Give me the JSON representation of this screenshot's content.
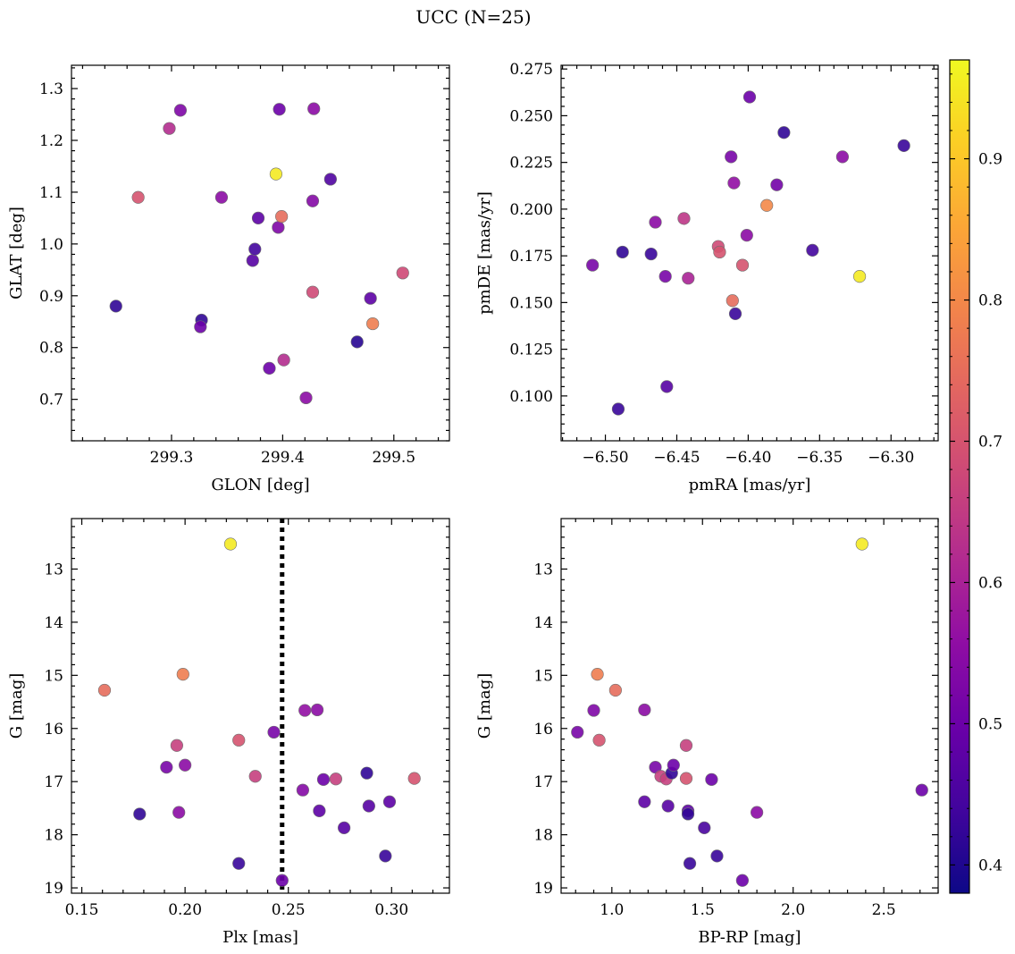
{
  "figure": {
    "title": "UCC (N=25)"
  },
  "colorbar": {
    "min": 0.38,
    "max": 0.97,
    "ticks": [
      0.4,
      0.5,
      0.6,
      0.7,
      0.8,
      0.9
    ],
    "tick_labels": [
      "0.4",
      "0.5",
      "0.6",
      "0.7",
      "0.8",
      "0.9"
    ],
    "colormap": "plasma"
  },
  "chart_data": [
    {
      "type": "scatter",
      "xlabel": "GLON [deg]",
      "ylabel": "GLAT [deg]",
      "xlim": [
        299.21,
        299.55
      ],
      "ylim": [
        0.62,
        1.345
      ],
      "y_inverted": false,
      "xticks": [
        299.3,
        299.4,
        299.5
      ],
      "xtick_labels": [
        "299.3",
        "299.4",
        "299.5"
      ],
      "yticks": [
        0.7,
        0.8,
        0.9,
        1.0,
        1.1,
        1.2,
        1.3
      ],
      "ytick_labels": [
        "0.7",
        "0.8",
        "0.9",
        "1.0",
        "1.1",
        "1.2",
        "1.3"
      ],
      "points": [
        {
          "x": 299.25,
          "y": 0.88,
          "c": 0.42
        },
        {
          "x": 299.27,
          "y": 1.09,
          "c": 0.7
        },
        {
          "x": 299.298,
          "y": 1.223,
          "c": 0.62
        },
        {
          "x": 299.308,
          "y": 1.258,
          "c": 0.53
        },
        {
          "x": 299.327,
          "y": 0.853,
          "c": 0.42
        },
        {
          "x": 299.326,
          "y": 0.84,
          "c": 0.5
        },
        {
          "x": 299.345,
          "y": 1.09,
          "c": 0.55
        },
        {
          "x": 299.373,
          "y": 0.968,
          "c": 0.47
        },
        {
          "x": 299.375,
          "y": 0.99,
          "c": 0.44
        },
        {
          "x": 299.378,
          "y": 1.05,
          "c": 0.48
        },
        {
          "x": 299.388,
          "y": 0.76,
          "c": 0.5
        },
        {
          "x": 299.394,
          "y": 1.135,
          "c": 0.95
        },
        {
          "x": 299.396,
          "y": 1.032,
          "c": 0.53
        },
        {
          "x": 299.397,
          "y": 1.26,
          "c": 0.5
        },
        {
          "x": 299.399,
          "y": 1.053,
          "c": 0.75
        },
        {
          "x": 299.401,
          "y": 0.776,
          "c": 0.62
        },
        {
          "x": 299.421,
          "y": 0.703,
          "c": 0.55
        },
        {
          "x": 299.427,
          "y": 0.907,
          "c": 0.68
        },
        {
          "x": 299.427,
          "y": 1.083,
          "c": 0.54
        },
        {
          "x": 299.428,
          "y": 1.261,
          "c": 0.55
        },
        {
          "x": 299.443,
          "y": 1.125,
          "c": 0.46
        },
        {
          "x": 299.467,
          "y": 0.811,
          "c": 0.41
        },
        {
          "x": 299.479,
          "y": 0.895,
          "c": 0.48
        },
        {
          "x": 299.481,
          "y": 0.846,
          "c": 0.78
        },
        {
          "x": 299.508,
          "y": 0.944,
          "c": 0.68
        }
      ]
    },
    {
      "type": "scatter",
      "xlabel": "pmRA [mas/yr]",
      "ylabel": "pmDE [mas/yr]",
      "xlim": [
        -6.531,
        -6.267
      ],
      "ylim": [
        0.076,
        0.277
      ],
      "y_inverted": false,
      "xticks": [
        -6.5,
        -6.45,
        -6.4,
        -6.35,
        -6.3
      ],
      "xtick_labels": [
        "−6.50",
        "−6.45",
        "−6.40",
        "−6.35",
        "−6.30"
      ],
      "yticks": [
        0.1,
        0.125,
        0.15,
        0.175,
        0.2,
        0.225,
        0.25,
        0.275
      ],
      "ytick_labels": [
        "0.100",
        "0.125",
        "0.150",
        "0.175",
        "0.200",
        "0.225",
        "0.250",
        "0.275"
      ],
      "points": [
        {
          "x": -6.509,
          "y": 0.17,
          "c": 0.52
        },
        {
          "x": -6.491,
          "y": 0.093,
          "c": 0.43
        },
        {
          "x": -6.488,
          "y": 0.177,
          "c": 0.42
        },
        {
          "x": -6.468,
          "y": 0.176,
          "c": 0.43
        },
        {
          "x": -6.465,
          "y": 0.193,
          "c": 0.55
        },
        {
          "x": -6.458,
          "y": 0.164,
          "c": 0.52
        },
        {
          "x": -6.457,
          "y": 0.105,
          "c": 0.47
        },
        {
          "x": -6.445,
          "y": 0.195,
          "c": 0.64
        },
        {
          "x": -6.442,
          "y": 0.163,
          "c": 0.6
        },
        {
          "x": -6.421,
          "y": 0.18,
          "c": 0.68
        },
        {
          "x": -6.42,
          "y": 0.177,
          "c": 0.7
        },
        {
          "x": -6.412,
          "y": 0.228,
          "c": 0.52
        },
        {
          "x": -6.411,
          "y": 0.151,
          "c": 0.75
        },
        {
          "x": -6.41,
          "y": 0.214,
          "c": 0.56
        },
        {
          "x": -6.409,
          "y": 0.144,
          "c": 0.43
        },
        {
          "x": -6.404,
          "y": 0.17,
          "c": 0.7
        },
        {
          "x": -6.401,
          "y": 0.186,
          "c": 0.55
        },
        {
          "x": -6.399,
          "y": 0.26,
          "c": 0.5
        },
        {
          "x": -6.387,
          "y": 0.202,
          "c": 0.8
        },
        {
          "x": -6.38,
          "y": 0.213,
          "c": 0.51
        },
        {
          "x": -6.375,
          "y": 0.241,
          "c": 0.42
        },
        {
          "x": -6.355,
          "y": 0.178,
          "c": 0.44
        },
        {
          "x": -6.334,
          "y": 0.228,
          "c": 0.55
        },
        {
          "x": -6.322,
          "y": 0.164,
          "c": 0.95
        },
        {
          "x": -6.291,
          "y": 0.234,
          "c": 0.43
        }
      ]
    },
    {
      "type": "scatter",
      "xlabel": "Plx [mas]",
      "ylabel": "G [mag]",
      "xlim": [
        0.145,
        0.328
      ],
      "ylim": [
        12.05,
        19.1
      ],
      "y_inverted": true,
      "xticks": [
        0.15,
        0.2,
        0.25,
        0.3
      ],
      "xtick_labels": [
        "0.15",
        "0.20",
        "0.25",
        "0.30"
      ],
      "yticks": [
        13,
        14,
        15,
        16,
        17,
        18,
        19
      ],
      "ytick_labels": [
        "13",
        "14",
        "15",
        "16",
        "17",
        "18",
        "19"
      ],
      "vline": {
        "x": 0.247,
        "style": "dotted",
        "color": "#000000"
      },
      "points": [
        {
          "x": 0.161,
          "y": 15.28,
          "c": 0.75
        },
        {
          "x": 0.178,
          "y": 17.61,
          "c": 0.42
        },
        {
          "x": 0.191,
          "y": 16.73,
          "c": 0.52
        },
        {
          "x": 0.196,
          "y": 16.32,
          "c": 0.66
        },
        {
          "x": 0.197,
          "y": 17.58,
          "c": 0.55
        },
        {
          "x": 0.199,
          "y": 14.98,
          "c": 0.78
        },
        {
          "x": 0.2,
          "y": 16.69,
          "c": 0.55
        },
        {
          "x": 0.222,
          "y": 12.53,
          "c": 0.95
        },
        {
          "x": 0.226,
          "y": 18.54,
          "c": 0.43
        },
        {
          "x": 0.226,
          "y": 16.22,
          "c": 0.7
        },
        {
          "x": 0.234,
          "y": 16.9,
          "c": 0.66
        },
        {
          "x": 0.243,
          "y": 16.07,
          "c": 0.52
        },
        {
          "x": 0.247,
          "y": 18.86,
          "c": 0.5
        },
        {
          "x": 0.257,
          "y": 17.16,
          "c": 0.54
        },
        {
          "x": 0.258,
          "y": 15.66,
          "c": 0.56
        },
        {
          "x": 0.264,
          "y": 15.65,
          "c": 0.55
        },
        {
          "x": 0.265,
          "y": 17.55,
          "c": 0.48
        },
        {
          "x": 0.267,
          "y": 16.96,
          "c": 0.5
        },
        {
          "x": 0.273,
          "y": 16.95,
          "c": 0.66
        },
        {
          "x": 0.277,
          "y": 17.87,
          "c": 0.47
        },
        {
          "x": 0.288,
          "y": 16.84,
          "c": 0.42
        },
        {
          "x": 0.289,
          "y": 17.46,
          "c": 0.47
        },
        {
          "x": 0.297,
          "y": 18.4,
          "c": 0.43
        },
        {
          "x": 0.299,
          "y": 17.38,
          "c": 0.48
        },
        {
          "x": 0.311,
          "y": 16.94,
          "c": 0.7
        }
      ]
    },
    {
      "type": "scatter",
      "xlabel": "BP-RP [mag]",
      "ylabel": "G [mag]",
      "xlim": [
        0.72,
        2.8
      ],
      "ylim": [
        12.05,
        19.1
      ],
      "y_inverted": true,
      "xticks": [
        1.0,
        1.5,
        2.0,
        2.5
      ],
      "xtick_labels": [
        "1.0",
        "1.5",
        "2.0",
        "2.5"
      ],
      "yticks": [
        13,
        14,
        15,
        16,
        17,
        18,
        19
      ],
      "ytick_labels": [
        "13",
        "14",
        "15",
        "16",
        "17",
        "18",
        "19"
      ],
      "points": [
        {
          "x": 0.81,
          "y": 16.07,
          "c": 0.52
        },
        {
          "x": 0.9,
          "y": 15.66,
          "c": 0.53
        },
        {
          "x": 0.92,
          "y": 14.98,
          "c": 0.78
        },
        {
          "x": 0.93,
          "y": 16.22,
          "c": 0.7
        },
        {
          "x": 1.02,
          "y": 15.28,
          "c": 0.75
        },
        {
          "x": 1.18,
          "y": 15.65,
          "c": 0.55
        },
        {
          "x": 1.18,
          "y": 17.38,
          "c": 0.48
        },
        {
          "x": 1.24,
          "y": 16.73,
          "c": 0.52
        },
        {
          "x": 1.27,
          "y": 16.9,
          "c": 0.66
        },
        {
          "x": 1.3,
          "y": 16.95,
          "c": 0.66
        },
        {
          "x": 1.31,
          "y": 17.46,
          "c": 0.47
        },
        {
          "x": 1.33,
          "y": 16.84,
          "c": 0.42
        },
        {
          "x": 1.34,
          "y": 16.69,
          "c": 0.5
        },
        {
          "x": 1.41,
          "y": 16.32,
          "c": 0.66
        },
        {
          "x": 1.41,
          "y": 16.94,
          "c": 0.7
        },
        {
          "x": 1.42,
          "y": 17.55,
          "c": 0.48
        },
        {
          "x": 1.42,
          "y": 17.61,
          "c": 0.42
        },
        {
          "x": 1.43,
          "y": 18.54,
          "c": 0.43
        },
        {
          "x": 1.51,
          "y": 17.87,
          "c": 0.45
        },
        {
          "x": 1.55,
          "y": 16.96,
          "c": 0.5
        },
        {
          "x": 1.58,
          "y": 18.4,
          "c": 0.43
        },
        {
          "x": 1.72,
          "y": 18.86,
          "c": 0.5
        },
        {
          "x": 1.8,
          "y": 17.58,
          "c": 0.55
        },
        {
          "x": 2.38,
          "y": 12.53,
          "c": 0.95
        },
        {
          "x": 2.71,
          "y": 17.16,
          "c": 0.5
        }
      ]
    }
  ]
}
